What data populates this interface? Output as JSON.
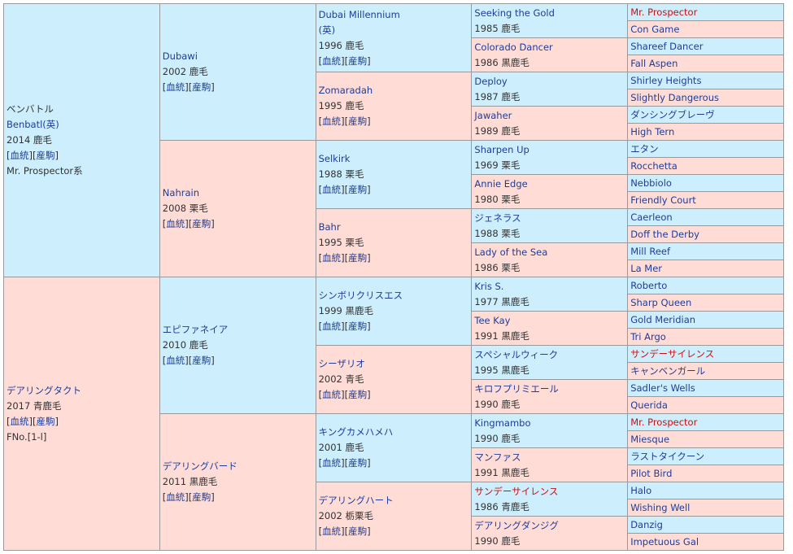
{
  "colors": {
    "male_bg": "#cdeefd",
    "female_bg": "#ffdcd6",
    "link": "#1e3d99",
    "highlight": "#cc1111"
  },
  "link_labels": [
    "血統",
    "産駒"
  ],
  "columns": [
    [
      {
        "pre": "ベンバトル",
        "name": "Benbatl(英)",
        "info": "2014 鹿毛",
        "links": true,
        "extra": "Mr. Prospector系"
      },
      {
        "name": "デアリングタクト",
        "info": "2017 青鹿毛",
        "links": true,
        "extra": "FNo.[1-l]"
      }
    ],
    [
      {
        "name": "Dubawi",
        "info": "2002 鹿毛",
        "links": true
      },
      {
        "name": "Nahrain",
        "info": "2008 栗毛",
        "links": true
      },
      {
        "name": "エピファネイア",
        "info": "2010 鹿毛",
        "links": true
      },
      {
        "name": "デアリングバード",
        "info": "2011 黒鹿毛",
        "links": true
      }
    ],
    [
      {
        "name": "Dubai Millennium",
        "name2": "(英)",
        "info": "1996 鹿毛",
        "links": true
      },
      {
        "name": "Zomaradah",
        "info": "1995 鹿毛",
        "links": true
      },
      {
        "name": "Selkirk",
        "info": "1988 栗毛",
        "links": true
      },
      {
        "name": "Bahr",
        "info": "1995 栗毛",
        "links": true
      },
      {
        "name": "シンボリクリスエス",
        "info": "1999 黒鹿毛",
        "links": true
      },
      {
        "name": "シーザリオ",
        "info": "2002 青毛",
        "links": true
      },
      {
        "name": "キングカメハメハ",
        "info": "2001 鹿毛",
        "links": true
      },
      {
        "name": "デアリングハート",
        "info": "2002 栃栗毛",
        "links": true
      }
    ],
    [
      {
        "name": "Seeking the Gold",
        "info": "1985 鹿毛"
      },
      {
        "name": "Colorado Dancer",
        "info": "1986 黒鹿毛"
      },
      {
        "name": "Deploy",
        "info": "1987 鹿毛"
      },
      {
        "name": "Jawaher",
        "info": "1989 鹿毛"
      },
      {
        "name": "Sharpen Up",
        "info": "1969 栗毛"
      },
      {
        "name": "Annie Edge",
        "info": "1980 栗毛"
      },
      {
        "name": "ジェネラス",
        "info": "1988 栗毛"
      },
      {
        "name": "Lady of the Sea",
        "info": "1986 栗毛"
      },
      {
        "name": "Kris S.",
        "info": "1977 黒鹿毛"
      },
      {
        "name": "Tee Kay",
        "info": "1991 黒鹿毛"
      },
      {
        "name": "スペシャルウィーク",
        "info": "1995 黒鹿毛"
      },
      {
        "name": "キロフプリミエール",
        "info": "1990 鹿毛"
      },
      {
        "name": "Kingmambo",
        "info": "1990 鹿毛"
      },
      {
        "name": "マンファス",
        "info": "1991 黒鹿毛"
      },
      {
        "name": "サンデーサイレンス",
        "info": "1986 青鹿毛",
        "highlight": true
      },
      {
        "name": "デアリングダンジグ",
        "info": "1990 鹿毛"
      }
    ],
    [
      {
        "name": "Mr. Prospector",
        "highlight": true
      },
      {
        "name": "Con Game"
      },
      {
        "name": "Shareef Dancer"
      },
      {
        "name": "Fall Aspen"
      },
      {
        "name": "Shirley Heights"
      },
      {
        "name": "Slightly Dangerous"
      },
      {
        "name": "ダンシングブレーヴ"
      },
      {
        "name": "High Tern"
      },
      {
        "name": "エタン"
      },
      {
        "name": "Rocchetta"
      },
      {
        "name": "Nebbiolo"
      },
      {
        "name": "Friendly Court"
      },
      {
        "name": "Caerleon"
      },
      {
        "name": "Doff the Derby"
      },
      {
        "name": "Mill Reef"
      },
      {
        "name": "La Mer"
      },
      {
        "name": "Roberto"
      },
      {
        "name": "Sharp Queen"
      },
      {
        "name": "Gold Meridian"
      },
      {
        "name": "Tri Argo"
      },
      {
        "name": "サンデーサイレンス",
        "highlight": true
      },
      {
        "name": "キャンベンガール"
      },
      {
        "name": "Sadler's Wells"
      },
      {
        "name": "Querida"
      },
      {
        "name": "Mr. Prospector",
        "highlight": true
      },
      {
        "name": "Miesque"
      },
      {
        "name": "ラストタイクーン"
      },
      {
        "name": "Pilot Bird"
      },
      {
        "name": "Halo"
      },
      {
        "name": "Wishing Well"
      },
      {
        "name": "Danzig"
      },
      {
        "name": "Impetuous Gal"
      }
    ]
  ]
}
